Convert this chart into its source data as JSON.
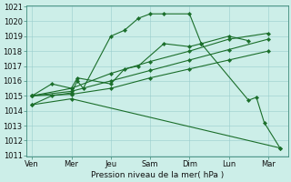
{
  "xlabel": "Pression niveau de la mer( hPa )",
  "ylim": [
    1011,
    1021
  ],
  "yticks": [
    1011,
    1012,
    1013,
    1014,
    1015,
    1016,
    1017,
    1018,
    1019,
    1020,
    1021
  ],
  "xtick_labels": [
    "Ven",
    "Mer",
    "Jeu",
    "Sam",
    "Dim",
    "Lun",
    "Mar"
  ],
  "xtick_positions": [
    0,
    1,
    2,
    3,
    4,
    5,
    6
  ],
  "xlim": [
    -0.15,
    6.5
  ],
  "bg_color": "#cceee8",
  "grid_color": "#99cccc",
  "line_color": "#1a6e2a",
  "series_x": [
    [
      0.0,
      0.5,
      1.0,
      1.15,
      1.3,
      2.0,
      2.35,
      2.7,
      3.0,
      3.35,
      4.0,
      4.3,
      5.5,
      5.7,
      5.9,
      6.3
    ],
    [
      0.0,
      0.5,
      1.0,
      1.15,
      2.0,
      2.35,
      2.7,
      3.35,
      4.0,
      4.3,
      5.0,
      5.5
    ],
    [
      0.0,
      1.0,
      2.0,
      3.0,
      4.0,
      5.0,
      6.0
    ],
    [
      0.0,
      1.0,
      2.0,
      3.0,
      4.0,
      5.0,
      6.0
    ],
    [
      0.0,
      1.0,
      2.0,
      3.0,
      4.0,
      5.0,
      6.0
    ],
    [
      0.0,
      1.0,
      6.3
    ]
  ],
  "series_y": [
    [
      1014.4,
      1015.0,
      1015.2,
      1016.0,
      1015.5,
      1019.0,
      1019.4,
      1020.2,
      1020.5,
      1020.5,
      1020.5,
      1018.5,
      1014.7,
      1014.9,
      1013.2,
      1011.5
    ],
    [
      1015.0,
      1015.8,
      1015.5,
      1016.2,
      1015.8,
      1016.8,
      1017.0,
      1018.5,
      1018.3,
      1018.5,
      1019.0,
      1018.7
    ],
    [
      1015.0,
      1015.5,
      1016.5,
      1017.3,
      1018.0,
      1018.8,
      1019.2
    ],
    [
      1015.0,
      1015.3,
      1016.0,
      1016.7,
      1017.4,
      1018.1,
      1018.8
    ],
    [
      1015.0,
      1015.1,
      1015.5,
      1016.2,
      1016.8,
      1017.4,
      1018.0
    ],
    [
      1014.4,
      1014.8,
      1011.5
    ]
  ]
}
